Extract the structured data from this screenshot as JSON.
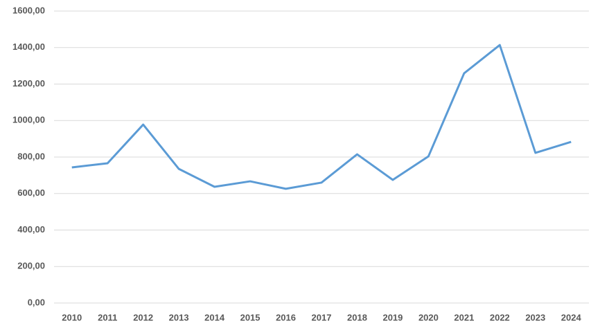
{
  "chart_data": {
    "type": "line",
    "categories": [
      "2010",
      "2011",
      "2012",
      "2013",
      "2014",
      "2015",
      "2016",
      "2017",
      "2018",
      "2019",
      "2020",
      "2021",
      "2022",
      "2023",
      "2024"
    ],
    "series": [
      {
        "color": "#5b9bd5",
        "values": [
          743,
          766,
          978,
          735,
          637,
          667,
          626,
          660,
          815,
          675,
          804,
          1259,
          1414,
          823,
          883
        ]
      }
    ],
    "ylim": [
      0,
      1600
    ],
    "yticks": [
      {
        "value": 0,
        "label": "0,00"
      },
      {
        "value": 200,
        "label": "200,00"
      },
      {
        "value": 400,
        "label": "400,00"
      },
      {
        "value": 600,
        "label": "600,00"
      },
      {
        "value": 800,
        "label": "800,00"
      },
      {
        "value": 1000,
        "label": "1000,00"
      },
      {
        "value": 1200,
        "label": "1200,00"
      },
      {
        "value": 1400,
        "label": "1400,00"
      },
      {
        "value": 1600,
        "label": "1600,00"
      }
    ],
    "grid": true
  }
}
